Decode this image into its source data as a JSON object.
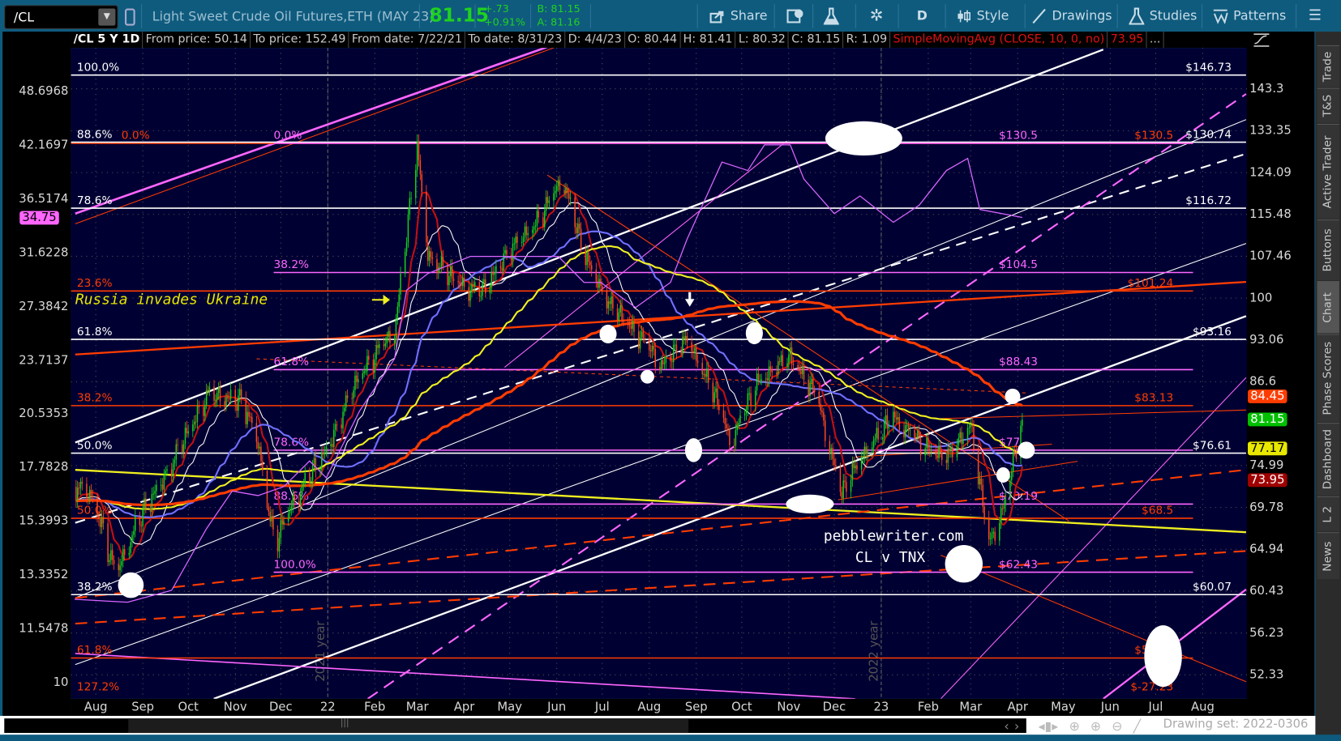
{
  "toolbar": {
    "symbol": "/CL",
    "description": "Light Sweet Crude Oil Futures,ETH (MAY 23)",
    "last": "81.15",
    "change": "+.73",
    "change_pct": "+0.91%",
    "bid": "B: 81.15",
    "ask": "A: 81.16",
    "share": "Share",
    "aggregation": "D",
    "style": "Style",
    "drawings": "Drawings",
    "studies": "Studies",
    "patterns": "Patterns",
    "colors": {
      "bg": "#0f5b7e",
      "last": "#1fd21f"
    }
  },
  "info_bar": {
    "symbol_period": "/CL 5 Y 1D",
    "from_price": "From price: 50.14",
    "to_price": "To price: 152.49",
    "from_date": "From date: 7/22/21",
    "to_date": "To date: 8/31/23",
    "date": "D: 4/4/23",
    "open": "O: 80.44",
    "high": "H: 81.41",
    "low": "L: 80.32",
    "close": "C: 81.15",
    "range": "R: 1.09",
    "study": "SimpleMovingAvg (CLOSE, 10, 0, no)",
    "study_value": "73.95",
    "more": "..."
  },
  "sidebar": {
    "tabs": [
      "Trade",
      "T&S",
      "Active Trader",
      "Buttons",
      "Chart",
      "Phase Scores",
      "Dashboard",
      "L 2",
      "News"
    ],
    "selected": "Chart"
  },
  "bottom": {
    "drawing_set": "Drawing set: 2022-0306"
  },
  "chart_data": {
    "type": "candlestick",
    "scale": "log",
    "background": "#000033",
    "right_axis_ticks": [
      143.3,
      133.35,
      124.09,
      115.48,
      107.46,
      100,
      93.06,
      86.6,
      74.99,
      69.78,
      64.94,
      60.43,
      56.23,
      52.33
    ],
    "left_axis_ticks": [
      48.6968,
      42.1697,
      36.5174,
      31.6228,
      27.3842,
      23.7137,
      20.5353,
      17.7828,
      15.3993,
      13.3352,
      11.5478,
      10
    ],
    "right_badges": [
      {
        "value": "84.45",
        "bg": "#ff3c00",
        "fg": "#ffffff"
      },
      {
        "value": "81.15",
        "bg": "#00c000",
        "fg": "#ffffff"
      },
      {
        "value": "77.17",
        "bg": "#e8e800",
        "fg": "#000000"
      },
      {
        "value": "73.95",
        "bg": "#a00000",
        "fg": "#ffffff"
      }
    ],
    "left_badge": {
      "value": "34.75",
      "bg": "#ff66ff",
      "fg": "#000000"
    },
    "x_ticks": [
      {
        "label": "Aug",
        "date": "2021-08-01"
      },
      {
        "label": "Sep",
        "date": "2021-09-01"
      },
      {
        "label": "Oct",
        "date": "2021-10-01"
      },
      {
        "label": "Nov",
        "date": "2021-11-01"
      },
      {
        "label": "Dec",
        "date": "2021-12-01"
      },
      {
        "label": "22",
        "date": "2022-01-01"
      },
      {
        "label": "Feb",
        "date": "2022-02-01"
      },
      {
        "label": "Mar",
        "date": "2022-03-01"
      },
      {
        "label": "Apr",
        "date": "2022-04-01"
      },
      {
        "label": "May",
        "date": "2022-05-01"
      },
      {
        "label": "Jun",
        "date": "2022-06-01"
      },
      {
        "label": "Jul",
        "date": "2022-07-01"
      },
      {
        "label": "Aug",
        "date": "2022-08-01"
      },
      {
        "label": "Sep",
        "date": "2022-09-01"
      },
      {
        "label": "Oct",
        "date": "2022-10-01"
      },
      {
        "label": "Nov",
        "date": "2022-11-01"
      },
      {
        "label": "Dec",
        "date": "2022-12-01"
      },
      {
        "label": "23",
        "date": "2023-01-01"
      },
      {
        "label": "Feb",
        "date": "2023-02-01"
      },
      {
        "label": "Mar",
        "date": "2023-03-01"
      },
      {
        "label": "Apr",
        "date": "2023-04-01"
      },
      {
        "label": "May",
        "date": "2023-05-01"
      },
      {
        "label": "Jun",
        "date": "2023-06-01"
      },
      {
        "label": "Jul",
        "date": "2023-07-01"
      },
      {
        "label": "Aug",
        "date": "2023-08-01"
      }
    ],
    "year_markers": [
      {
        "label": "2021 year",
        "date": "2022-01-01"
      },
      {
        "label": "2022 year",
        "date": "2023-01-01"
      }
    ],
    "price_series": [
      [
        "2021-07-18",
        72.3
      ],
      [
        "2021-07-31",
        70.7
      ],
      [
        "2021-08-14",
        62.0
      ],
      [
        "2021-08-28",
        67.7
      ],
      [
        "2021-09-20",
        75.0
      ],
      [
        "2021-10-13",
        84.4
      ],
      [
        "2021-11-05",
        83.8
      ],
      [
        "2021-11-16",
        77.8
      ],
      [
        "2021-11-27",
        65.2
      ],
      [
        "2021-12-09",
        70.3
      ],
      [
        "2021-12-31",
        76.7
      ],
      [
        "2022-01-22",
        87.5
      ],
      [
        "2022-02-14",
        94.2
      ],
      [
        "2022-03-01",
        129.2
      ],
      [
        "2022-03-08",
        107.4
      ],
      [
        "2022-03-25",
        102.8
      ],
      [
        "2022-04-12",
        100.6
      ],
      [
        "2022-04-29",
        107.4
      ],
      [
        "2022-05-22",
        114.8
      ],
      [
        "2022-06-05",
        122.6
      ],
      [
        "2022-06-19",
        107.4
      ],
      [
        "2022-07-06",
        98.4
      ],
      [
        "2022-07-23",
        94.2
      ],
      [
        "2022-08-09",
        88.8
      ],
      [
        "2022-08-26",
        92.8
      ],
      [
        "2022-09-12",
        84.9
      ],
      [
        "2022-09-24",
        77.8
      ],
      [
        "2022-10-11",
        86.2
      ],
      [
        "2022-11-02",
        90.1
      ],
      [
        "2022-11-19",
        84.4
      ],
      [
        "2022-12-06",
        71.2
      ],
      [
        "2022-12-18",
        75.6
      ],
      [
        "2023-01-09",
        81.3
      ],
      [
        "2023-01-26",
        77.8
      ],
      [
        "2023-02-13",
        75.6
      ],
      [
        "2023-03-01",
        80.2
      ],
      [
        "2023-03-13",
        65.2
      ],
      [
        "2023-03-24",
        70.3
      ],
      [
        "2023-04-04",
        81.15
      ]
    ],
    "comparison_series": {
      "name": "TNX",
      "color": "#d966ff",
      "points": [
        [
          "2021-07-18",
          12.5
        ],
        [
          "2021-08-22",
          12.4
        ],
        [
          "2021-09-20",
          12.8
        ],
        [
          "2021-10-13",
          15.1
        ],
        [
          "2021-10-30",
          16.7
        ],
        [
          "2021-11-16",
          16.5
        ],
        [
          "2021-12-03",
          16.9
        ],
        [
          "2021-12-20",
          18.1
        ],
        [
          "2021-12-31",
          17.3
        ],
        [
          "2022-01-22",
          20.7
        ],
        [
          "2022-02-14",
          23.8
        ],
        [
          "2022-02-22",
          28.6
        ],
        [
          "2022-03-08",
          29.9
        ],
        [
          "2022-04-05",
          31.3
        ],
        [
          "2022-05-04",
          31.3
        ],
        [
          "2022-06-02",
          31.3
        ],
        [
          "2022-06-19",
          29.2
        ],
        [
          "2022-06-30",
          29.2
        ],
        [
          "2022-07-23",
          27.3
        ],
        [
          "2022-08-15",
          29.2
        ],
        [
          "2022-08-26",
          32.8
        ],
        [
          "2022-09-18",
          40.3
        ],
        [
          "2022-10-05",
          39.4
        ],
        [
          "2022-10-16",
          42.2
        ],
        [
          "2022-11-02",
          42.2
        ],
        [
          "2022-11-11",
          38.5
        ],
        [
          "2022-12-01",
          35.1
        ],
        [
          "2022-12-18",
          36.8
        ],
        [
          "2023-01-09",
          34.3
        ],
        [
          "2023-01-26",
          35.9
        ],
        [
          "2023-02-13",
          39.4
        ],
        [
          "2023-02-27",
          40.7
        ],
        [
          "2023-03-07",
          35.5
        ],
        [
          "2023-04-04",
          34.75
        ]
      ]
    },
    "moving_averages": [
      {
        "period": 10,
        "color": "#c01010"
      },
      {
        "period": 20,
        "color": "#ffffff"
      },
      {
        "period": 50,
        "color": "#7070ff"
      },
      {
        "period": 100,
        "color": "#f0f020"
      },
      {
        "period": 200,
        "color": "#ff3c00"
      }
    ],
    "fib_white": [
      {
        "pct": "100.0%",
        "price": 146.73,
        "label": "$146.73"
      },
      {
        "pct": "88.6%",
        "price": 130.74,
        "label": "$130.74"
      },
      {
        "pct": "78.6%",
        "price": 116.72,
        "label": "$116.72"
      },
      {
        "pct": "61.8%",
        "price": 93.16,
        "label": "$93.16"
      },
      {
        "pct": "50.0%",
        "price": 76.61,
        "label": "$76.61"
      },
      {
        "pct": "38.2%",
        "price": 60.07,
        "label": "$60.07"
      }
    ],
    "fib_red": [
      {
        "pct": "0.0%",
        "price": 130.5,
        "label": "$130.5"
      },
      {
        "pct": "23.6%",
        "price": 101.24,
        "label": "$101.24"
      },
      {
        "pct": "38.2%",
        "price": 83.13,
        "label": "$83.13"
      },
      {
        "pct": "50.0%",
        "price": 68.5,
        "label": "$68.5"
      },
      {
        "pct": "61.8%",
        "price": 53.87,
        "label": "$53.87"
      },
      {
        "pct": "127.2%",
        "price": -27.23,
        "label": "$-27.23"
      }
    ],
    "fib_pink": [
      {
        "pct": "0.0%",
        "price": 130.5,
        "label": "$130.5"
      },
      {
        "pct": "38.2%",
        "price": 104.5,
        "label": "$104.5"
      },
      {
        "pct": "61.8%",
        "price": 88.43,
        "label": "$88.43"
      },
      {
        "pct": "78.6%",
        "price": 77,
        "label": "$77"
      },
      {
        "pct": "88.6%",
        "price": 70.19,
        "label": "$70.19"
      },
      {
        "pct": "100.0%",
        "price": 62.43,
        "label": "$62.43"
      }
    ],
    "annotations": {
      "event": "Russia invades Ukraine",
      "watermark": "pebblewriter.com",
      "subtitle": "CL v TNX"
    }
  }
}
